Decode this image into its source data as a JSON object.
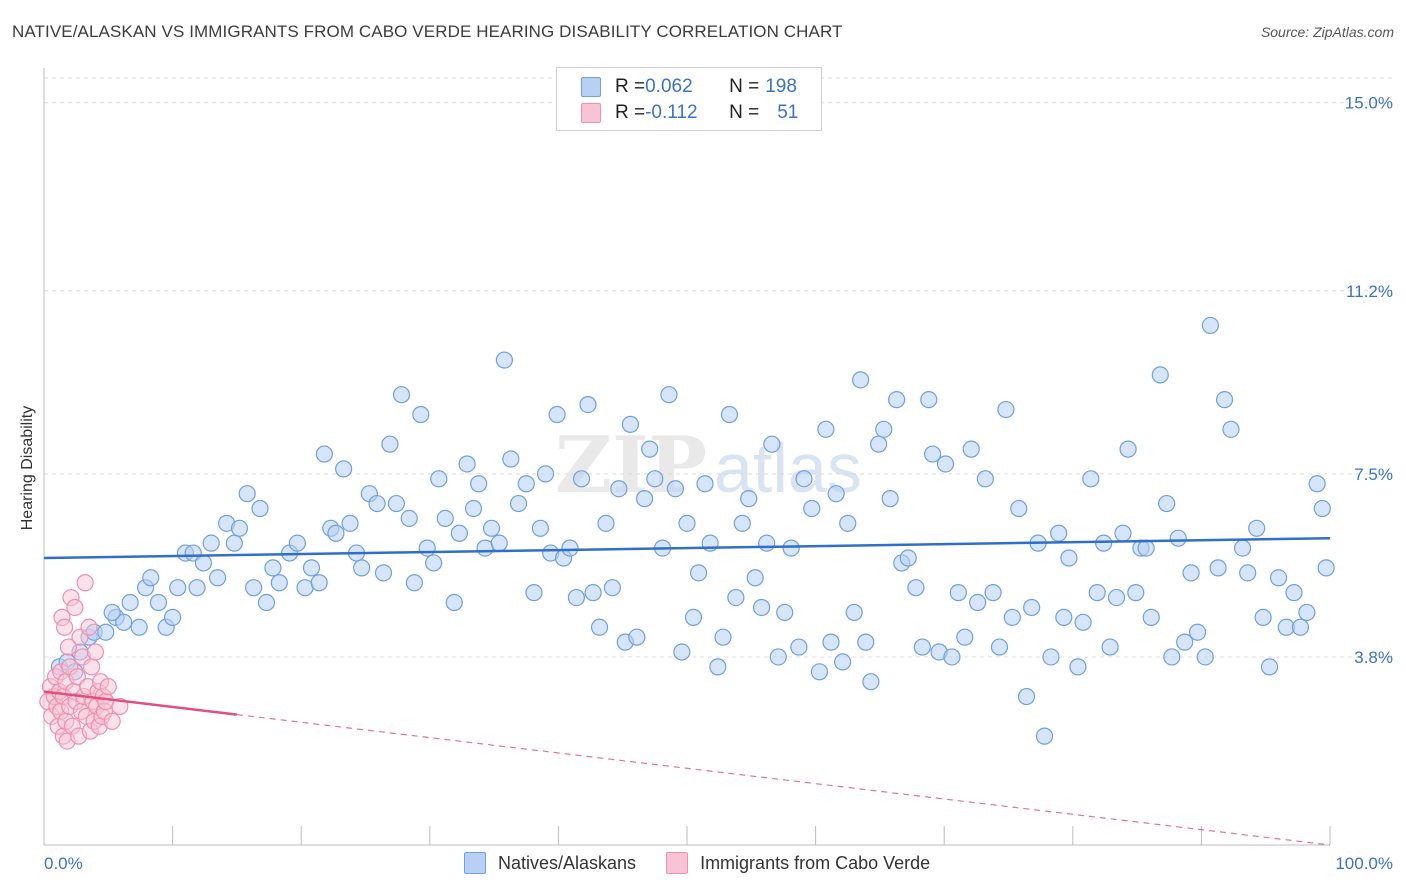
{
  "title": "NATIVE/ALASKAN VS IMMIGRANTS FROM CABO VERDE HEARING DISABILITY CORRELATION CHART",
  "source": "Source: ZipAtlas.com",
  "watermark": "ZIPatlas",
  "colors": {
    "blue": "#6fa0e0",
    "blue_fill": "#b7d0f3",
    "blue_line": "#2f6fc9",
    "pink": "#f08fb0",
    "pink_fill": "#f8c3d5",
    "pink_line": "#e0507f",
    "axis_text": "#3b73c4"
  },
  "legend": {
    "row1": {
      "r_label": "R = ",
      "r_value": "0.062",
      "n_label": "N = ",
      "n_value": "198"
    },
    "row2": {
      "r_label": "R = ",
      "r_value": "-0.112",
      "n_label": "N = ",
      "n_value": "51"
    }
  },
  "bottom_legend": {
    "series1": "Natives/Alaskans",
    "series2": "Immigrants from Cabo Verde"
  },
  "chart_data": {
    "type": "scatter",
    "title": "NATIVE/ALASKAN VS IMMIGRANTS FROM CABO VERDE HEARING DISABILITY CORRELATION CHART",
    "xlabel": "",
    "ylabel": "Hearing Disability",
    "xlim": [
      0,
      100
    ],
    "ylim": [
      0,
      15.5
    ],
    "x_tick_labels": [
      "0.0%",
      "100.0%"
    ],
    "y_ticks": [
      3.8,
      7.5,
      11.2,
      15.0
    ],
    "y_tick_labels": [
      "3.8%",
      "7.5%",
      "11.2%",
      "15.0%"
    ],
    "grid": "horizontal dashed",
    "legend_position": "top-center",
    "series": [
      {
        "name": "Natives/Alaskans",
        "color": "#6fa0e0",
        "trend": {
          "x": [
            0,
            100
          ],
          "y": [
            5.8,
            6.2
          ]
        },
        "points": [
          [
            1.2,
            3.6
          ],
          [
            1.8,
            3.7
          ],
          [
            2.4,
            3.5
          ],
          [
            2.8,
            3.9
          ],
          [
            3.5,
            4.2
          ],
          [
            3.9,
            4.3
          ],
          [
            4.8,
            4.3
          ],
          [
            5.6,
            4.6
          ],
          [
            6.2,
            4.5
          ],
          [
            5.3,
            4.7
          ],
          [
            6.7,
            4.9
          ],
          [
            7.4,
            4.4
          ],
          [
            7.9,
            5.2
          ],
          [
            8.3,
            5.4
          ],
          [
            8.9,
            4.9
          ],
          [
            9.5,
            4.4
          ],
          [
            10.0,
            4.6
          ],
          [
            10.4,
            5.2
          ],
          [
            11.0,
            5.9
          ],
          [
            11.6,
            5.9
          ],
          [
            11.9,
            5.2
          ],
          [
            12.4,
            5.7
          ],
          [
            13.0,
            6.1
          ],
          [
            13.5,
            5.4
          ],
          [
            14.2,
            6.5
          ],
          [
            14.8,
            6.1
          ],
          [
            15.2,
            6.4
          ],
          [
            15.8,
            7.1
          ],
          [
            16.3,
            5.2
          ],
          [
            16.8,
            6.8
          ],
          [
            17.3,
            4.9
          ],
          [
            17.8,
            5.6
          ],
          [
            18.3,
            5.3
          ],
          [
            19.1,
            5.9
          ],
          [
            19.7,
            6.1
          ],
          [
            20.3,
            5.2
          ],
          [
            20.8,
            5.6
          ],
          [
            21.4,
            5.3
          ],
          [
            21.8,
            7.9
          ],
          [
            22.3,
            6.4
          ],
          [
            22.7,
            6.3
          ],
          [
            23.3,
            7.6
          ],
          [
            23.8,
            6.5
          ],
          [
            24.3,
            5.9
          ],
          [
            24.7,
            5.6
          ],
          [
            25.3,
            7.1
          ],
          [
            25.9,
            6.9
          ],
          [
            26.4,
            5.5
          ],
          [
            26.9,
            8.1
          ],
          [
            27.4,
            6.9
          ],
          [
            27.8,
            9.1
          ],
          [
            28.4,
            6.6
          ],
          [
            28.8,
            5.3
          ],
          [
            29.3,
            8.7
          ],
          [
            29.8,
            6.0
          ],
          [
            30.3,
            5.7
          ],
          [
            30.7,
            7.4
          ],
          [
            31.2,
            6.6
          ],
          [
            31.9,
            4.9
          ],
          [
            32.3,
            6.3
          ],
          [
            32.9,
            7.7
          ],
          [
            33.4,
            6.8
          ],
          [
            33.8,
            7.3
          ],
          [
            34.3,
            6.0
          ],
          [
            34.8,
            6.4
          ],
          [
            35.4,
            6.1
          ],
          [
            35.8,
            9.8
          ],
          [
            36.3,
            7.8
          ],
          [
            36.9,
            6.9
          ],
          [
            37.5,
            7.3
          ],
          [
            38.1,
            5.1
          ],
          [
            38.6,
            6.4
          ],
          [
            39.0,
            7.5
          ],
          [
            39.4,
            5.9
          ],
          [
            39.9,
            8.7
          ],
          [
            40.4,
            5.8
          ],
          [
            40.9,
            6.0
          ],
          [
            41.4,
            5.0
          ],
          [
            41.8,
            7.4
          ],
          [
            42.3,
            8.9
          ],
          [
            42.7,
            5.1
          ],
          [
            43.2,
            4.4
          ],
          [
            43.7,
            6.5
          ],
          [
            44.2,
            5.2
          ],
          [
            44.7,
            7.2
          ],
          [
            45.2,
            4.1
          ],
          [
            45.6,
            8.5
          ],
          [
            46.1,
            4.2
          ],
          [
            46.7,
            7.0
          ],
          [
            47.1,
            8.0
          ],
          [
            47.5,
            7.4
          ],
          [
            48.1,
            6.0
          ],
          [
            48.6,
            9.1
          ],
          [
            49.1,
            7.2
          ],
          [
            49.6,
            3.9
          ],
          [
            50.0,
            6.5
          ],
          [
            50.5,
            4.6
          ],
          [
            50.9,
            5.5
          ],
          [
            51.4,
            7.3
          ],
          [
            51.8,
            6.1
          ],
          [
            52.4,
            3.6
          ],
          [
            52.8,
            4.2
          ],
          [
            53.3,
            8.7
          ],
          [
            53.8,
            5.0
          ],
          [
            54.3,
            6.5
          ],
          [
            54.8,
            7.0
          ],
          [
            55.3,
            5.4
          ],
          [
            55.8,
            4.8
          ],
          [
            56.2,
            6.1
          ],
          [
            56.6,
            8.1
          ],
          [
            57.1,
            3.8
          ],
          [
            57.6,
            4.7
          ],
          [
            58.1,
            6.0
          ],
          [
            58.7,
            4.0
          ],
          [
            59.1,
            7.4
          ],
          [
            59.7,
            6.8
          ],
          [
            60.3,
            3.5
          ],
          [
            60.8,
            8.4
          ],
          [
            61.2,
            4.1
          ],
          [
            61.6,
            7.1
          ],
          [
            62.1,
            3.7
          ],
          [
            62.5,
            6.5
          ],
          [
            63.0,
            4.7
          ],
          [
            63.5,
            9.4
          ],
          [
            63.9,
            4.1
          ],
          [
            64.3,
            3.3
          ],
          [
            64.9,
            8.1
          ],
          [
            65.3,
            8.4
          ],
          [
            65.8,
            7.0
          ],
          [
            66.3,
            9.0
          ],
          [
            66.7,
            5.7
          ],
          [
            67.2,
            5.8
          ],
          [
            67.8,
            5.2
          ],
          [
            68.3,
            4.0
          ],
          [
            68.8,
            9.0
          ],
          [
            69.1,
            7.9
          ],
          [
            69.6,
            3.9
          ],
          [
            70.1,
            7.7
          ],
          [
            70.6,
            3.8
          ],
          [
            71.1,
            5.1
          ],
          [
            71.6,
            4.2
          ],
          [
            72.1,
            8.0
          ],
          [
            72.6,
            4.9
          ],
          [
            73.2,
            7.4
          ],
          [
            73.8,
            5.1
          ],
          [
            74.3,
            4.0
          ],
          [
            74.8,
            8.8
          ],
          [
            75.3,
            4.6
          ],
          [
            75.8,
            6.8
          ],
          [
            76.4,
            3.0
          ],
          [
            76.8,
            4.8
          ],
          [
            77.3,
            6.1
          ],
          [
            77.8,
            2.2
          ],
          [
            78.3,
            3.8
          ],
          [
            78.9,
            6.3
          ],
          [
            79.3,
            4.6
          ],
          [
            79.7,
            5.8
          ],
          [
            80.4,
            3.6
          ],
          [
            80.8,
            4.5
          ],
          [
            81.4,
            7.4
          ],
          [
            81.9,
            5.1
          ],
          [
            82.4,
            6.1
          ],
          [
            82.9,
            4.0
          ],
          [
            83.4,
            5.0
          ],
          [
            83.9,
            6.3
          ],
          [
            84.3,
            8.0
          ],
          [
            84.9,
            5.1
          ],
          [
            85.3,
            6.0
          ],
          [
            85.7,
            6.0
          ],
          [
            86.1,
            4.6
          ],
          [
            86.8,
            9.5
          ],
          [
            87.3,
            6.9
          ],
          [
            87.7,
            3.8
          ],
          [
            88.2,
            6.2
          ],
          [
            88.7,
            4.1
          ],
          [
            89.2,
            5.5
          ],
          [
            89.7,
            4.3
          ],
          [
            90.3,
            3.8
          ],
          [
            90.7,
            10.5
          ],
          [
            91.3,
            5.6
          ],
          [
            91.8,
            9.0
          ],
          [
            92.3,
            8.4
          ],
          [
            93.2,
            6.0
          ],
          [
            93.6,
            5.5
          ],
          [
            94.3,
            6.4
          ],
          [
            94.8,
            4.6
          ],
          [
            95.3,
            3.6
          ],
          [
            96.0,
            5.4
          ],
          [
            96.6,
            4.4
          ],
          [
            97.2,
            5.1
          ],
          [
            97.7,
            4.4
          ],
          [
            98.2,
            4.7
          ],
          [
            99.0,
            7.3
          ],
          [
            99.4,
            6.8
          ],
          [
            99.7,
            5.6
          ]
        ]
      },
      {
        "name": "Immigrants from Cabo Verde",
        "color": "#f08fb0",
        "trend": {
          "x": [
            0,
            100
          ],
          "y": [
            3.1,
            0.0
          ]
        },
        "points": [
          [
            0.3,
            2.9
          ],
          [
            0.5,
            3.2
          ],
          [
            0.6,
            2.6
          ],
          [
            0.8,
            3.0
          ],
          [
            0.9,
            3.4
          ],
          [
            1.0,
            2.8
          ],
          [
            1.1,
            2.4
          ],
          [
            1.2,
            3.1
          ],
          [
            1.3,
            2.7
          ],
          [
            1.3,
            3.5
          ],
          [
            1.4,
            4.6
          ],
          [
            1.5,
            2.2
          ],
          [
            1.5,
            3.0
          ],
          [
            1.6,
            4.4
          ],
          [
            1.7,
            2.5
          ],
          [
            1.7,
            3.3
          ],
          [
            1.8,
            2.1
          ],
          [
            1.9,
            4.0
          ],
          [
            2.0,
            2.8
          ],
          [
            2.0,
            3.6
          ],
          [
            2.1,
            5.0
          ],
          [
            2.2,
            2.4
          ],
          [
            2.3,
            3.1
          ],
          [
            2.4,
            4.8
          ],
          [
            2.5,
            2.9
          ],
          [
            2.6,
            3.4
          ],
          [
            2.7,
            2.2
          ],
          [
            2.8,
            4.2
          ],
          [
            2.9,
            2.7
          ],
          [
            3.0,
            3.8
          ],
          [
            3.1,
            3.0
          ],
          [
            3.2,
            5.3
          ],
          [
            3.3,
            2.6
          ],
          [
            3.4,
            3.2
          ],
          [
            3.5,
            4.4
          ],
          [
            3.6,
            2.3
          ],
          [
            3.7,
            3.6
          ],
          [
            3.8,
            2.9
          ],
          [
            3.9,
            2.5
          ],
          [
            4.0,
            3.9
          ],
          [
            4.1,
            2.8
          ],
          [
            4.2,
            3.1
          ],
          [
            4.3,
            2.4
          ],
          [
            4.4,
            3.3
          ],
          [
            4.5,
            2.6
          ],
          [
            4.6,
            3.0
          ],
          [
            4.7,
            2.7
          ],
          [
            4.8,
            2.9
          ],
          [
            5.0,
            3.2
          ],
          [
            5.3,
            2.5
          ],
          [
            5.9,
            2.8
          ]
        ]
      }
    ]
  }
}
